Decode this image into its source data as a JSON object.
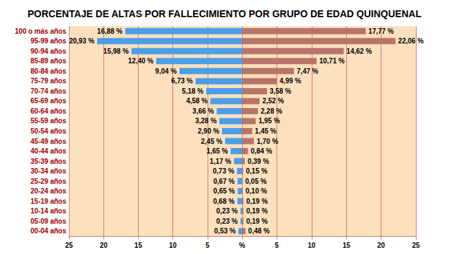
{
  "chart_data": [
    {
      "type": "bar",
      "title": "PORCENTAJE DE ALTAS POR FALLECIMIENTO POR GRUPO DE EDAD QUINQUENAL",
      "orientation": "horizontal",
      "categories": [
        "100 o más años",
        "95-99 años",
        "90-94 años",
        "85-89 años",
        "80-84 años",
        "75-79 años",
        "70-74 años",
        "65-69 años",
        "60-64 años",
        "55-59 años",
        "50-54 años",
        "45-49 años",
        "40-44 años",
        "35-39 años",
        "30-34 años",
        "25-29 años",
        "20-24 años",
        "15-19 años",
        "10-14 años",
        "05-09 años",
        "00-04 años"
      ],
      "values": [
        16.88,
        20.93,
        15.98,
        12.4,
        9.04,
        6.73,
        5.18,
        4.58,
        3.66,
        3.28,
        2.9,
        2.45,
        1.65,
        1.17,
        0.73,
        0.67,
        0.65,
        0.68,
        0.23,
        0.23,
        0.53
      ],
      "value_labels": [
        "16,88 %",
        "20,93 %",
        "15,98 %",
        "12,40 %",
        "9,04 %",
        "6,73 %",
        "5,18 %",
        "4,58 %",
        "3,66 %",
        "3,28 %",
        "2,90 %",
        "2,45 %",
        "1,65 %",
        "1,17 %",
        "0,73 %",
        "0,67 %",
        "0,65 %",
        "0,68 %",
        "0,23 %",
        "0,23 %",
        "0,53 %"
      ],
      "color": "#4a9eea",
      "data_labels": true,
      "xlim": [
        0,
        25
      ],
      "xticks": [
        {
          "value": 0,
          "label": "%"
        },
        5,
        10,
        15,
        20,
        25
      ],
      "grid": true
    },
    {
      "type": "bar",
      "orientation": "horizontal",
      "categories": [
        "100 o más años",
        "95-99 años",
        "90-94 años",
        "85-89 años",
        "80-84 años",
        "75-79 años",
        "70-74 años",
        "65-69 años",
        "60-64 años",
        "55-59 años",
        "50-54 años",
        "45-49 años",
        "40-44 años",
        "35-39 años",
        "30-34 años",
        "25-29 años",
        "20-24 años",
        "15-19 años",
        "10-14 años",
        "05-09 años",
        "00-04 años"
      ],
      "values": [
        17.77,
        22.06,
        14.62,
        10.71,
        7.47,
        4.99,
        3.58,
        2.52,
        2.28,
        1.95,
        1.45,
        1.7,
        0.84,
        0.39,
        0.15,
        0.05,
        0.1,
        0.19,
        0.19,
        0.19,
        0.48
      ],
      "value_labels": [
        "17,77 %",
        "22,06 %",
        "14,62 %",
        "10,71 %",
        "7,47 %",
        "4,99 %",
        "3,58 %",
        "2,52 %",
        "2,28 %",
        "1,95 %",
        "1,45 %",
        "1,70 %",
        "0,84 %",
        "0,39 %",
        "0,15 %",
        "0,05 %",
        "0,10 %",
        "0,19 %",
        "0,19 %",
        "0,19 %",
        "0,48 %"
      ],
      "color": "#b87468",
      "data_labels": true,
      "xlim": [
        0,
        25
      ],
      "xticks": [
        5,
        10,
        15,
        20,
        25
      ],
      "grid": true
    }
  ]
}
